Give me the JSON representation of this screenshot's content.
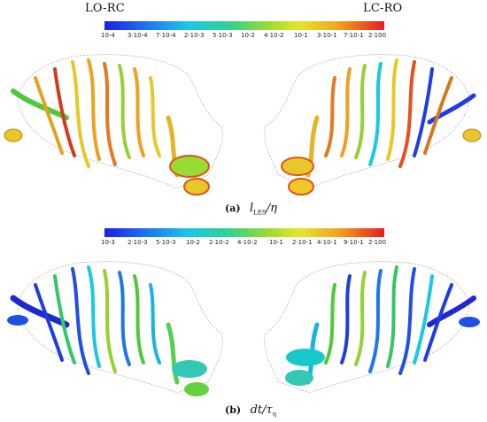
{
  "panel_a": {
    "left_case": "LO-RC",
    "right_case": "LC-RO",
    "ticks": [
      "10-4",
      "3·10-4",
      "7·10-4",
      "2·10-3",
      "5·10-3",
      "10-2",
      "4·10-2",
      "10-1",
      "3·10-1",
      "7·10-1",
      "2·100"
    ],
    "caption_letter": "(a)",
    "formula_main": "l",
    "formula_sub": "LES",
    "formula_rest": "/η"
  },
  "panel_b": {
    "ticks": [
      "10-3",
      "2·10-3",
      "5·10-3",
      "10-2",
      "2·10-2",
      "4·10-2",
      "10-1",
      "2·10-1",
      "4·10-1",
      "9·10-1",
      "2·100"
    ],
    "caption_letter": "(b)",
    "formula_main": "dt/τ",
    "formula_sub": "η"
  },
  "colors": {
    "colormap": [
      "#1e1ee6",
      "#1e6ef0",
      "#19c8e6",
      "#32d28c",
      "#96dc32",
      "#e6e628",
      "#f0a01e",
      "#e61e1e"
    ]
  }
}
